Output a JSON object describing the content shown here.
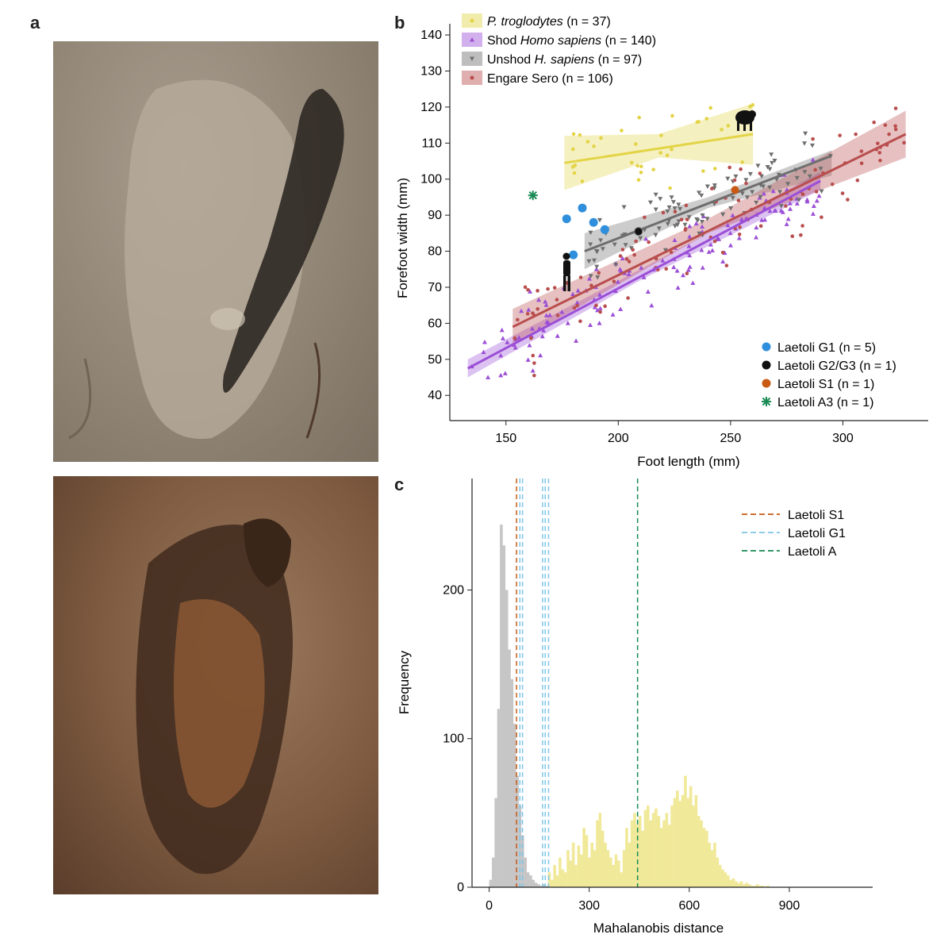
{
  "panels": {
    "a": "a",
    "b": "b",
    "c": "c"
  },
  "colors": {
    "troglodytes": "#e3d447",
    "shod": "#9b4fd6",
    "unshod": "#6e6e6e",
    "engare": "#b94e4e",
    "g1": "#2f8fdc",
    "g2g3": "#111111",
    "s1": "#c85a14",
    "a3": "#1a8a55",
    "hist_gray": "#c6c6c6",
    "hist_yellow": "#f1e99a"
  },
  "chart_data": [
    {
      "type": "scatter",
      "xlabel": "Foot length (mm)",
      "ylabel": "Forefoot width (mm)",
      "xlim": [
        125,
        338
      ],
      "ylim": [
        33,
        142
      ],
      "xticks": [
        "150",
        "200",
        "250",
        "300"
      ],
      "yticks": [
        "40",
        "50",
        "60",
        "70",
        "80",
        "90",
        "100",
        "110",
        "120",
        "130",
        "140"
      ],
      "legend_top": [
        {
          "key": "troglodytes",
          "marker": "dot",
          "name_italic": "P. troglodytes",
          "name_rest": "",
          "n_text": " (n = 37)"
        },
        {
          "key": "shod",
          "marker": "tri-up",
          "name_pre": "Shod ",
          "name_italic": "Homo sapiens",
          "n_text": " (n = 140)"
        },
        {
          "key": "unshod",
          "marker": "tri-down",
          "name_pre": "Unshod ",
          "name_italic": "H. sapiens",
          "n_text": " (n = 97)"
        },
        {
          "key": "engare",
          "marker": "dot",
          "name_pre": "Engare Sero",
          "name_italic": "",
          "n_text": " (n = 106)"
        }
      ],
      "legend_bottom": [
        {
          "key": "g1",
          "label": "Laetoli G1 (n = 5)"
        },
        {
          "key": "g2g3",
          "label": "Laetoli G2/G3 (n = 1)"
        },
        {
          "key": "s1",
          "label": "Laetoli S1 (n = 1)"
        },
        {
          "key": "a3",
          "label": "Laetoli A3 (n = 1)"
        }
      ],
      "fits": [
        {
          "key": "troglodytes",
          "x": [
            176,
            260
          ],
          "y": [
            104.5,
            112.5
          ],
          "band": [
            [
              176,
              97,
              112
            ],
            [
              218,
              106,
              112.5
            ],
            [
              260,
              104,
              121
            ]
          ]
        },
        {
          "key": "shod",
          "x": [
            133,
            290
          ],
          "y": [
            47.5,
            99.5
          ],
          "band": [
            [
              133,
              45,
              50
            ],
            [
              210,
              72,
              75
            ],
            [
              290,
              97,
              102
            ]
          ]
        },
        {
          "key": "unshod",
          "x": [
            185,
            295
          ],
          "y": [
            80,
            106.5
          ],
          "band": [
            [
              185,
              75,
              85
            ],
            [
              240,
              92,
              95
            ],
            [
              295,
              101,
              108
            ]
          ]
        },
        {
          "key": "engare",
          "x": [
            153,
            328
          ],
          "y": [
            59,
            112.5
          ],
          "band": [
            [
              153,
              54,
              64
            ],
            [
              240,
              85,
              89
            ],
            [
              328,
              106,
              119
            ]
          ]
        }
      ],
      "fossils": [
        {
          "key": "g1",
          "x": 177,
          "y": 89
        },
        {
          "key": "g1",
          "x": 184,
          "y": 92
        },
        {
          "key": "g1",
          "x": 189,
          "y": 88
        },
        {
          "key": "g1",
          "x": 194,
          "y": 86
        },
        {
          "key": "g1",
          "x": 180,
          "y": 79
        },
        {
          "key": "g2g3",
          "x": 209,
          "y": 85.5
        },
        {
          "key": "s1",
          "x": 252,
          "y": 97
        },
        {
          "key": "a3",
          "x": 162,
          "y": 95.5
        }
      ]
    },
    {
      "type": "bar",
      "xlabel": "Mahalanobis distance",
      "ylabel": "Frequency",
      "xlim": [
        -80,
        1150
      ],
      "ylim": [
        0,
        275
      ],
      "xticks": [
        "0",
        "300",
        "600",
        "900"
      ],
      "yticks": [
        "0",
        "100",
        "200"
      ],
      "bin_width": 8,
      "gray_bins_start": 0,
      "gray_bins": [
        5,
        20,
        60,
        120,
        244,
        230,
        200,
        160,
        140,
        110,
        75,
        55,
        35,
        20,
        10,
        8,
        5,
        3,
        2,
        1,
        2,
        1
      ],
      "yellow_bins_start": 176,
      "yellow_bins": [
        10,
        5,
        15,
        8,
        20,
        12,
        10,
        25,
        18,
        30,
        15,
        28,
        22,
        40,
        35,
        20,
        30,
        25,
        45,
        50,
        38,
        30,
        25,
        20,
        15,
        22,
        18,
        10,
        25,
        40,
        30,
        45,
        50,
        42,
        48,
        38,
        52,
        55,
        45,
        50,
        53,
        48,
        40,
        45,
        50,
        42,
        55,
        60,
        65,
        58,
        62,
        75,
        60,
        68,
        55,
        62,
        48,
        45,
        40,
        38,
        30,
        25,
        30,
        20,
        15,
        12,
        10,
        8,
        5,
        6,
        4,
        3,
        4,
        2,
        3,
        2,
        1,
        1,
        2,
        1,
        1,
        0,
        1
      ],
      "vlines": [
        {
          "name": "Laetoli S1",
          "colorkey": "s1",
          "x": [
            82
          ]
        },
        {
          "name": "Laetoli G1",
          "colorkey": "g1",
          "x": [
            92,
            100,
            160,
            168,
            178
          ]
        },
        {
          "name": "Laetoli A",
          "colorkey": "a3",
          "x": [
            445
          ]
        }
      ]
    }
  ]
}
